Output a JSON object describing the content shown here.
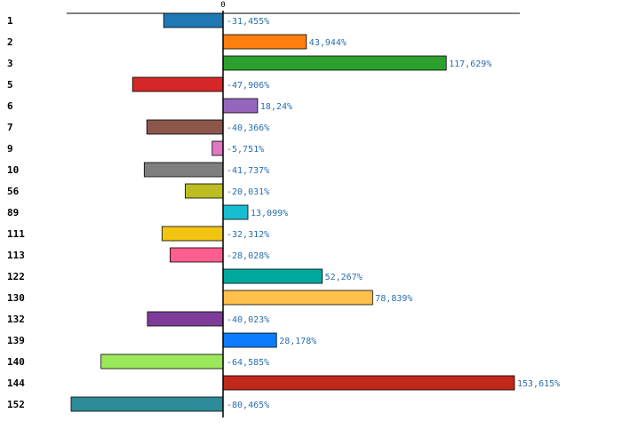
{
  "chart_data": {
    "type": "bar",
    "orientation": "horizontal",
    "title": "",
    "xlabel": "",
    "ylabel": "",
    "zero_tick_label": "0",
    "xlim": [
      -80.465,
      153.615
    ],
    "grid": false,
    "legend": "none",
    "categories": [
      "1",
      "2",
      "3",
      "5",
      "6",
      "7",
      "9",
      "10",
      "56",
      "89",
      "111",
      "113",
      "122",
      "130",
      "132",
      "139",
      "140",
      "144",
      "152"
    ],
    "values": [
      -31.455,
      43.944,
      117.629,
      -47.906,
      18.24,
      -40.366,
      -5.751,
      -41.737,
      -20.031,
      13.099,
      -32.312,
      -28.028,
      52.267,
      78.839,
      -40.023,
      28.178,
      -64.585,
      153.615,
      -80.465
    ],
    "value_labels": [
      "-31,455%",
      "43,944%",
      "117,629%",
      "-47,906%",
      "18,24%",
      "-40,366%",
      "-5,751%",
      "-41,737%",
      "-20,031%",
      "13,099%",
      "-32,312%",
      "-28,028%",
      "52,267%",
      "78,839%",
      "-40,023%",
      "28,178%",
      "-64,585%",
      "153,615%",
      "-80,465%"
    ],
    "colors": [
      "#1f77b4",
      "#ff7f0e",
      "#2ca02c",
      "#d62728",
      "#9467bd",
      "#8c564b",
      "#e377c2",
      "#7f7f7f",
      "#bcbd22",
      "#17becf",
      "#f1c40f",
      "#ff5e8e",
      "#00a99d",
      "#ffc04c",
      "#7d3c98",
      "#0a7cff",
      "#9be85a",
      "#c0281a",
      "#2e8b9a"
    ]
  }
}
